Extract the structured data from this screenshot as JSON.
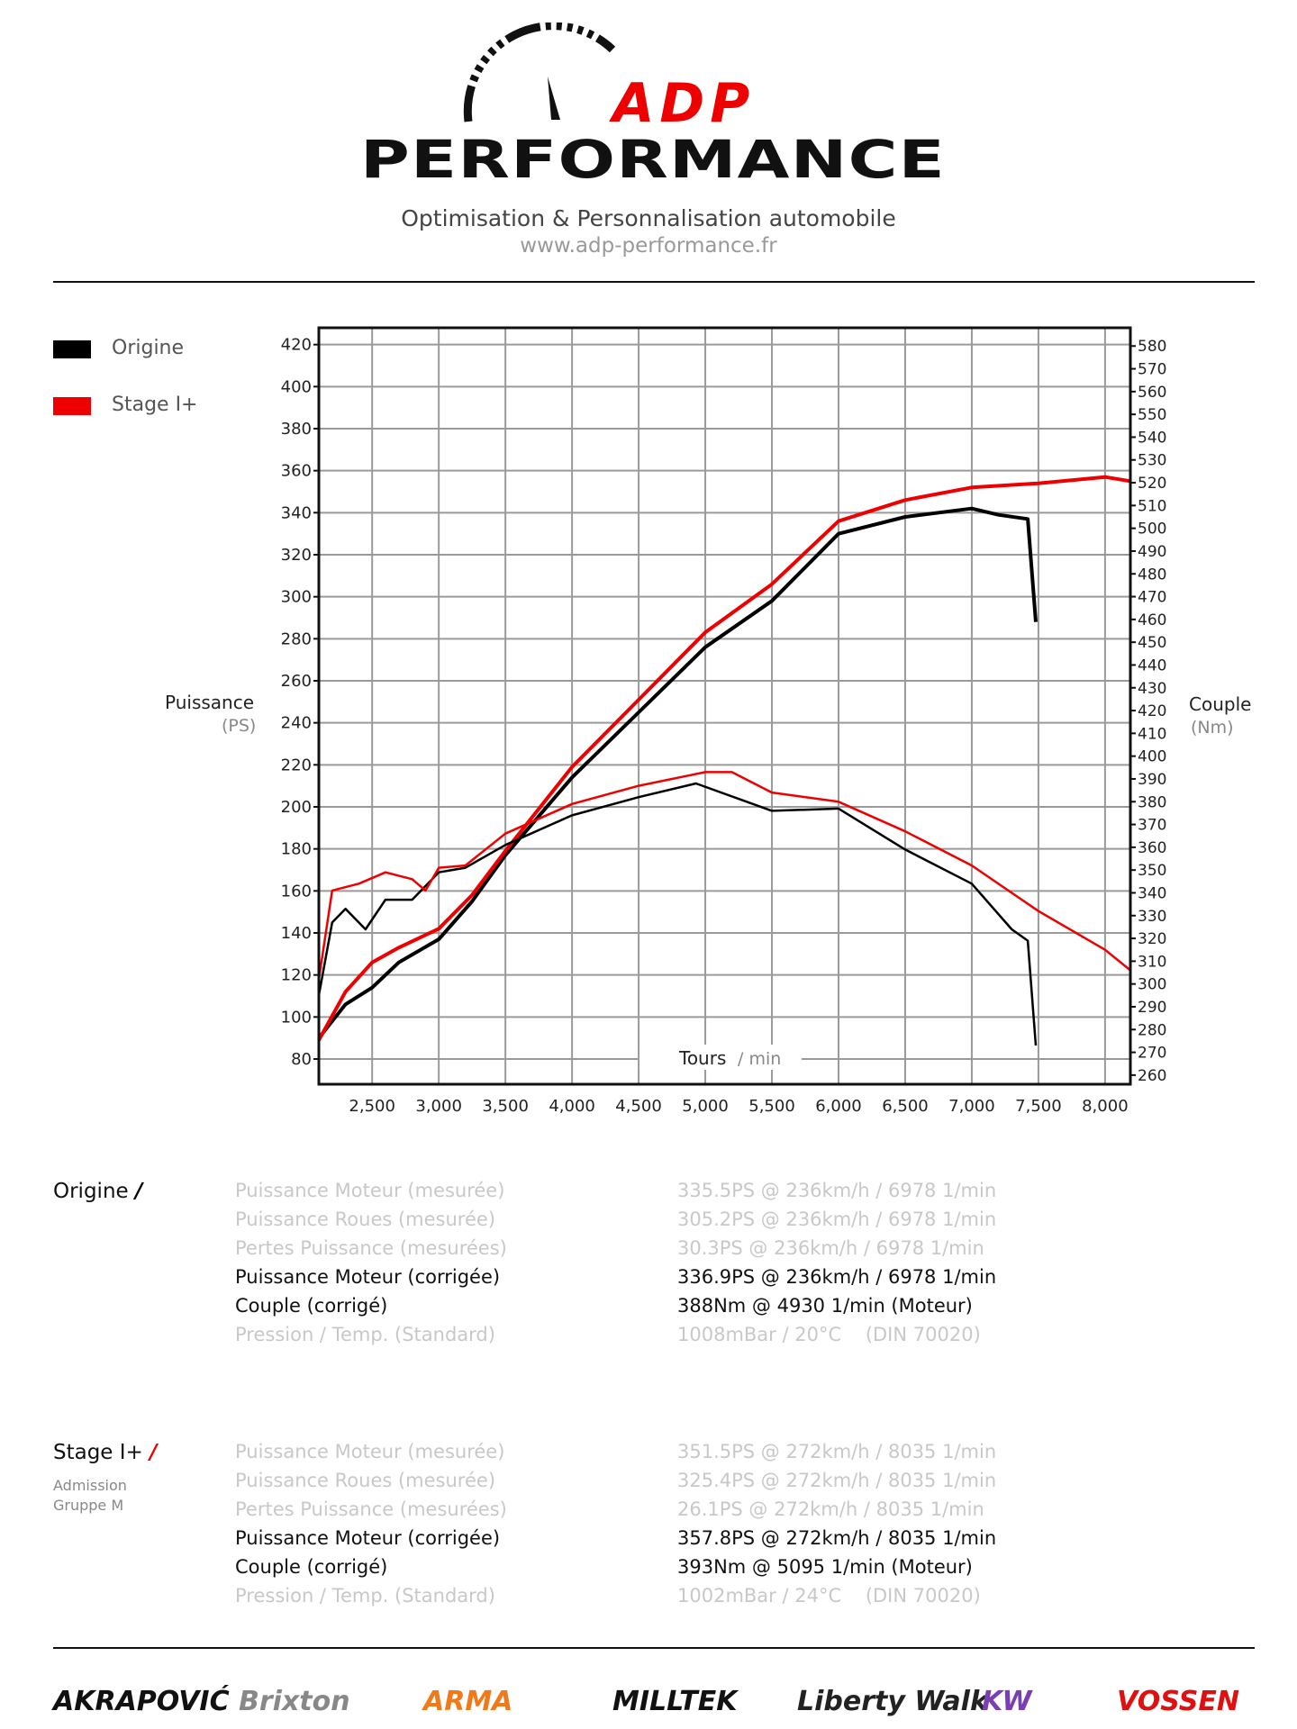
{
  "header": {
    "logo_text_top": "ADP",
    "logo_text_bottom": "PERFORMANCE",
    "tagline": "Optimisation & Personnalisation automobile",
    "url": "www.adp-performance.fr"
  },
  "colors": {
    "origine": "#000000",
    "stage": "#ee0000",
    "grid": "#9a9a9a",
    "dim_text": "#c8c8c8"
  },
  "chart_data": {
    "type": "line",
    "xlabel": "Tours",
    "xlabel_unit": "/ min",
    "ylabel": "Puissance",
    "ylabel_unit": "(PS)",
    "y2label": "Couple",
    "y2label_unit": "(Nm)",
    "xlim": [
      2100,
      8190
    ],
    "ylim": [
      68,
      428
    ],
    "y2lim": [
      256,
      588
    ],
    "grid": true,
    "legend_placement": "top-left",
    "x_ticks": [
      "2,500",
      "3,000",
      "3,500",
      "4,000",
      "4,500",
      "5,000",
      "5,500",
      "6,000",
      "6,500",
      "7,000",
      "7,500",
      "8,000"
    ],
    "x_tick_values": [
      2500,
      3000,
      3500,
      4000,
      4500,
      5000,
      5500,
      6000,
      6500,
      7000,
      7500,
      8000
    ],
    "y_ticks": [
      80,
      100,
      120,
      140,
      160,
      180,
      200,
      220,
      240,
      260,
      280,
      300,
      320,
      340,
      360,
      380,
      400,
      420
    ],
    "y2_ticks": [
      260,
      270,
      280,
      290,
      300,
      310,
      320,
      330,
      340,
      350,
      360,
      370,
      380,
      390,
      400,
      410,
      420,
      430,
      440,
      450,
      460,
      470,
      480,
      490,
      500,
      510,
      520,
      530,
      540,
      550,
      560,
      570,
      580
    ],
    "series": [
      {
        "name": "Origine",
        "measure": "power",
        "color": "#000000",
        "x": [
          2100,
          2300,
          2500,
          2700,
          3000,
          3250,
          3500,
          4000,
          4500,
          5000,
          5500,
          6000,
          6500,
          7000,
          7200,
          7420,
          7480
        ],
        "y": [
          90,
          106,
          114,
          126,
          137,
          155,
          177,
          214,
          245,
          276,
          298,
          330,
          338,
          342,
          339,
          337,
          288
        ]
      },
      {
        "name": "Stage 1+",
        "measure": "power",
        "color": "#ee0000",
        "x": [
          2100,
          2300,
          2500,
          2700,
          3000,
          3250,
          3500,
          4000,
          4500,
          5000,
          5500,
          6000,
          6500,
          7000,
          7500,
          8000,
          8190
        ],
        "y": [
          89,
          112,
          126,
          133,
          142,
          158,
          179,
          219,
          251,
          283,
          306,
          336,
          346,
          352,
          354,
          357,
          355
        ]
      },
      {
        "name": "Origine",
        "measure": "torque",
        "color": "#000000",
        "x": [
          2100,
          2200,
          2300,
          2450,
          2600,
          2800,
          3000,
          3200,
          3500,
          4000,
          4500,
          4930,
          5500,
          6000,
          6500,
          7000,
          7300,
          7420,
          7480
        ],
        "y": [
          295,
          327,
          333,
          324,
          337,
          337,
          349,
          351,
          361,
          374,
          382,
          388,
          376,
          377,
          359,
          344,
          324,
          319,
          273
        ]
      },
      {
        "name": "Stage 1+",
        "measure": "torque",
        "color": "#ee0000",
        "x": [
          2100,
          2200,
          2400,
          2600,
          2800,
          2900,
          3000,
          3200,
          3500,
          4000,
          4500,
          5000,
          5200,
          5500,
          6000,
          6500,
          7000,
          7500,
          8000,
          8190
        ],
        "y": [
          302,
          341,
          344,
          349,
          346,
          341,
          351,
          352,
          366,
          379,
          387,
          393,
          393,
          384,
          380,
          367,
          352,
          332,
          315,
          306
        ]
      }
    ]
  },
  "legend": [
    {
      "label": "Origine",
      "color": "#000000"
    },
    {
      "label": "Stage I+",
      "color": "#ee0000"
    }
  ],
  "results": [
    {
      "title": "Origine",
      "slash": "/",
      "slash_color": "#000000",
      "subtitle": [],
      "rows": [
        {
          "label": "Puissance Moteur (mesurée)",
          "value": "335.5PS @ 236km/h / 6978 1/min",
          "emphasis": false
        },
        {
          "label": "Puissance Roues (mesurée)",
          "value": "305.2PS @ 236km/h / 6978 1/min",
          "emphasis": false
        },
        {
          "label": "Pertes Puissance (mesurées)",
          "value": "30.3PS @ 236km/h / 6978 1/min",
          "emphasis": false
        },
        {
          "label": "Puissance Moteur (corrigée)",
          "value": "336.9PS @ 236km/h / 6978 1/min",
          "emphasis": true
        },
        {
          "label": "Couple (corrigé)",
          "value": "388Nm @ 4930 1/min (Moteur)",
          "emphasis": true
        },
        {
          "label": "Pression / Temp. (Standard)",
          "value": "1008mBar / 20°C    (DIN 70020)",
          "emphasis": false
        }
      ]
    },
    {
      "title": "Stage I+",
      "slash": "/",
      "slash_color": "#ee0000",
      "subtitle": [
        "Admission",
        "Gruppe M"
      ],
      "rows": [
        {
          "label": "Puissance Moteur (mesurée)",
          "value": "351.5PS @ 272km/h / 8035 1/min",
          "emphasis": false
        },
        {
          "label": "Puissance Roues (mesurée)",
          "value": "325.4PS @ 272km/h / 8035 1/min",
          "emphasis": false
        },
        {
          "label": "Pertes Puissance (mesurées)",
          "value": "26.1PS @ 272km/h / 8035 1/min",
          "emphasis": false
        },
        {
          "label": "Puissance Moteur (corrigée)",
          "value": "357.8PS @ 272km/h / 8035 1/min",
          "emphasis": true
        },
        {
          "label": "Couple (corrigé)",
          "value": "393Nm @ 5095 1/min (Moteur)",
          "emphasis": true
        },
        {
          "label": "Pression / Temp. (Standard)",
          "value": "1002mBar / 24°C    (DIN 70020)",
          "emphasis": false
        }
      ]
    }
  ],
  "sponsors": [
    {
      "name": "AKRAPOVIĆ",
      "color": "#111111"
    },
    {
      "name": "Brixton",
      "color": "#888888"
    },
    {
      "name": "ARMA",
      "color": "#f07a1a"
    },
    {
      "name": "MILLTEK",
      "color": "#111111"
    },
    {
      "name": "Liberty Walk",
      "color": "#222222"
    },
    {
      "name": "KW",
      "color": "#7a3fb0"
    },
    {
      "name": "VOSSEN",
      "color": "#e01010"
    }
  ]
}
